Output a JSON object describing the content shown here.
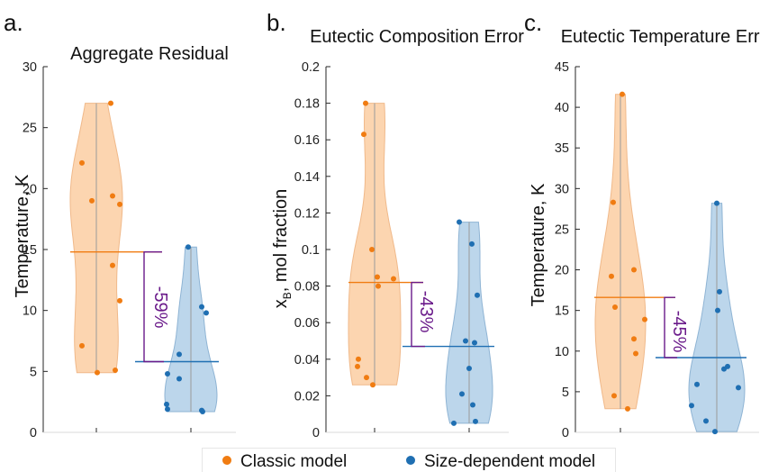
{
  "colors": {
    "classic_fill": "#fcd5b0",
    "classic_edge": "#f0b98a",
    "classic_point": "#f07c12",
    "size_fill": "#bcd6eb",
    "size_edge": "#8fb4d4",
    "size_point": "#1f6fb2",
    "annotation": "#6a1a8a",
    "axis": "#262626"
  },
  "legend": {
    "classic_label": "Classic model",
    "size_label": "Size-dependent model"
  },
  "chart_data": [
    {
      "type": "violin",
      "panel_label": "a.",
      "title": "Aggregate Residual",
      "ylabel": "Temperature, K",
      "ylim": [
        0,
        30
      ],
      "yticks": [
        0,
        5,
        10,
        15,
        20,
        25,
        30
      ],
      "ytick_labels": [
        "0",
        "5",
        "10",
        "15",
        "20",
        "25",
        "30"
      ],
      "series": [
        {
          "name": "Classic model",
          "points": [
            27.0,
            22.1,
            19.0,
            19.4,
            18.7,
            13.7,
            10.8,
            7.1,
            5.1,
            4.9
          ],
          "mean": 14.8,
          "min": 4.9,
          "max": 27.0
        },
        {
          "name": "Size-dependent model",
          "points": [
            15.2,
            10.3,
            9.8,
            6.4,
            4.8,
            4.4,
            2.3,
            1.9,
            1.8,
            1.7
          ],
          "mean": 5.8,
          "min": 1.7,
          "max": 15.2
        }
      ],
      "annotation": "-59%"
    },
    {
      "type": "violin",
      "panel_label": "b.",
      "title": "Eutectic Composition Error",
      "ylabel": "x_B, mol fraction",
      "ylim": [
        0,
        0.2
      ],
      "yticks": [
        0,
        0.02,
        0.04,
        0.06,
        0.08,
        0.1,
        0.12,
        0.14,
        0.16,
        0.18,
        0.2
      ],
      "ytick_labels": [
        "0",
        "0.02",
        "0.04",
        "0.06",
        "0.08",
        "0.1",
        "0.12",
        "0.14",
        "0.16",
        "0.18",
        "0.2"
      ],
      "series": [
        {
          "name": "Classic model",
          "points": [
            0.18,
            0.163,
            0.1,
            0.085,
            0.084,
            0.08,
            0.04,
            0.036,
            0.03,
            0.026
          ],
          "mean": 0.082,
          "min": 0.026,
          "max": 0.18
        },
        {
          "name": "Size-dependent model",
          "points": [
            0.115,
            0.103,
            0.075,
            0.05,
            0.049,
            0.035,
            0.021,
            0.015,
            0.006,
            0.005
          ],
          "mean": 0.047,
          "min": 0.005,
          "max": 0.115
        }
      ],
      "annotation": "-43%"
    },
    {
      "type": "violin",
      "panel_label": "c.",
      "title": "Eutectic Temperature Error",
      "ylabel": "Temperature, K",
      "ylim": [
        0,
        45
      ],
      "yticks": [
        0,
        5,
        10,
        15,
        20,
        25,
        30,
        35,
        40,
        45
      ],
      "ytick_labels": [
        "0",
        "5",
        "10",
        "15",
        "20",
        "25",
        "30",
        "35",
        "40",
        "45"
      ],
      "series": [
        {
          "name": "Classic model",
          "points": [
            41.6,
            28.3,
            20.0,
            19.2,
            15.4,
            13.9,
            11.5,
            9.7,
            4.5,
            2.9
          ],
          "mean": 16.6,
          "min": 2.9,
          "max": 41.6
        },
        {
          "name": "Size-dependent model",
          "points": [
            28.2,
            17.3,
            15.0,
            8.1,
            7.8,
            5.9,
            5.5,
            3.3,
            1.4,
            0.1
          ],
          "mean": 9.2,
          "min": 0.1,
          "max": 28.2
        }
      ],
      "annotation": "-45%"
    }
  ]
}
